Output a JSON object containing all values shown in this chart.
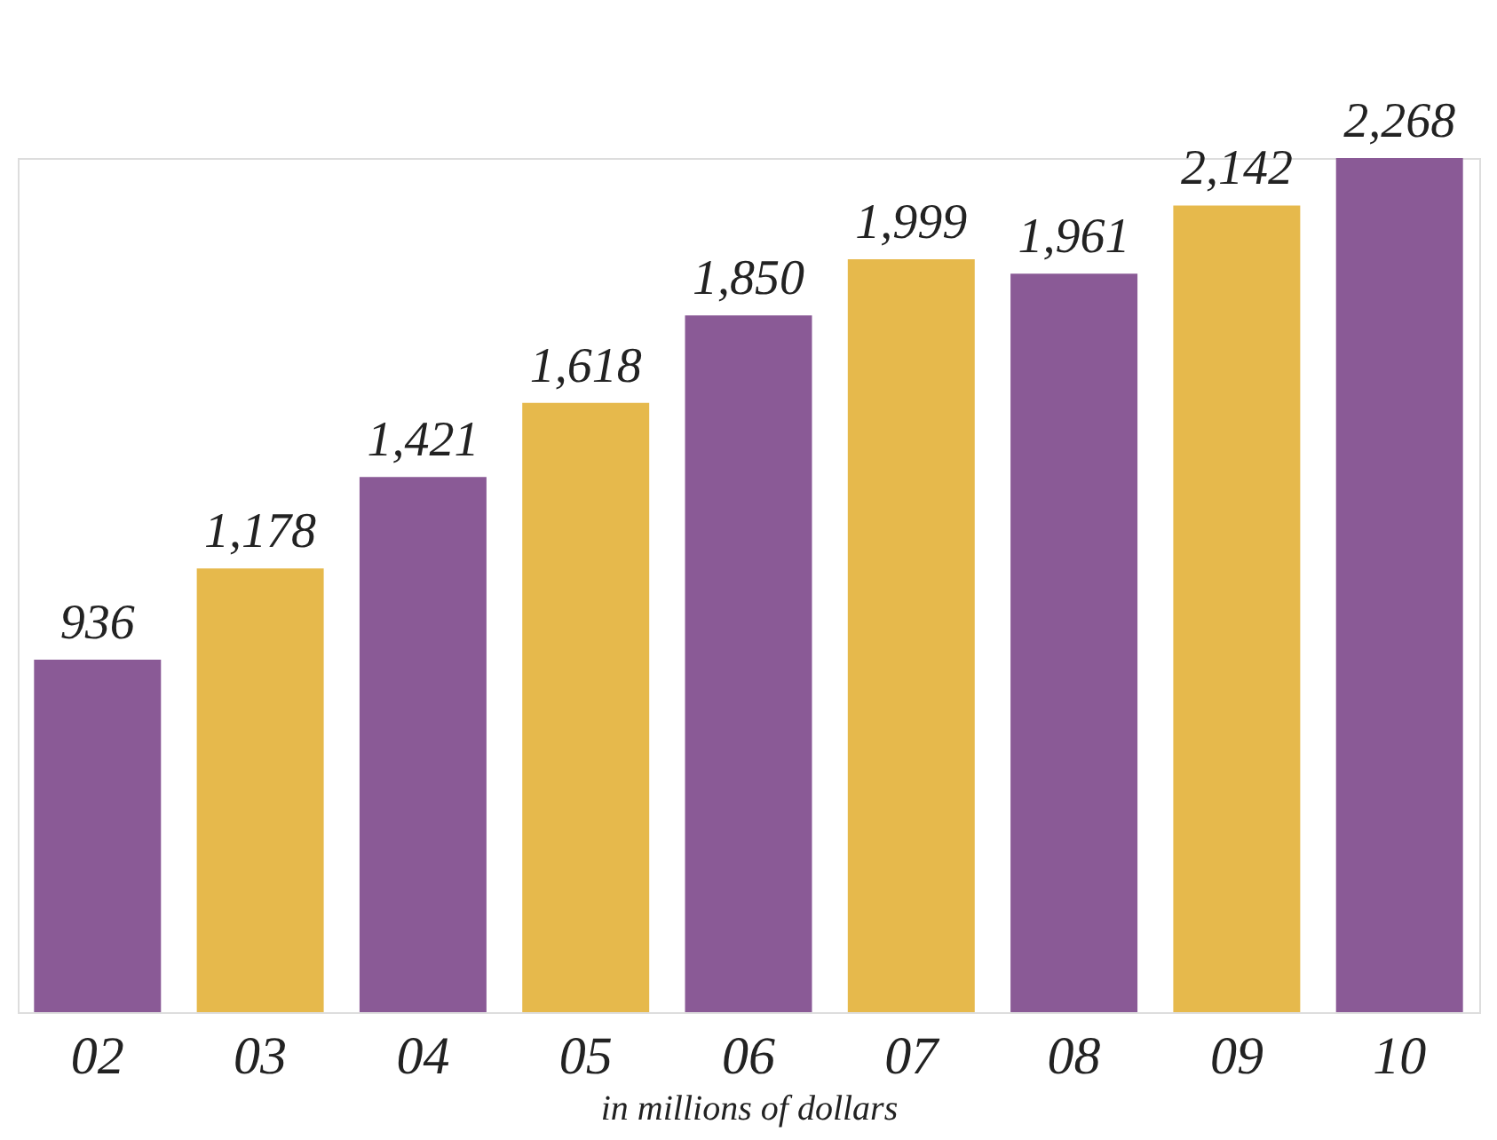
{
  "chart_data": {
    "type": "bar",
    "xlabel": "in millions of dollars",
    "categories": [
      "02",
      "03",
      "04",
      "05",
      "06",
      "07",
      "08",
      "09",
      "10"
    ],
    "values": [
      936,
      1178,
      1421,
      1618,
      1850,
      1999,
      1961,
      2142,
      2268
    ],
    "value_labels": [
      "936",
      "1,178",
      "1,421",
      "1,618",
      "1,850",
      "1,999",
      "1,961",
      "2,142",
      "2,268"
    ],
    "colors": [
      "#8a5a96",
      "#e6b94c",
      "#8a5a96",
      "#e6b94c",
      "#8a5a96",
      "#e6b94c",
      "#8a5a96",
      "#e6b94c",
      "#8a5a96"
    ],
    "grid": false
  }
}
